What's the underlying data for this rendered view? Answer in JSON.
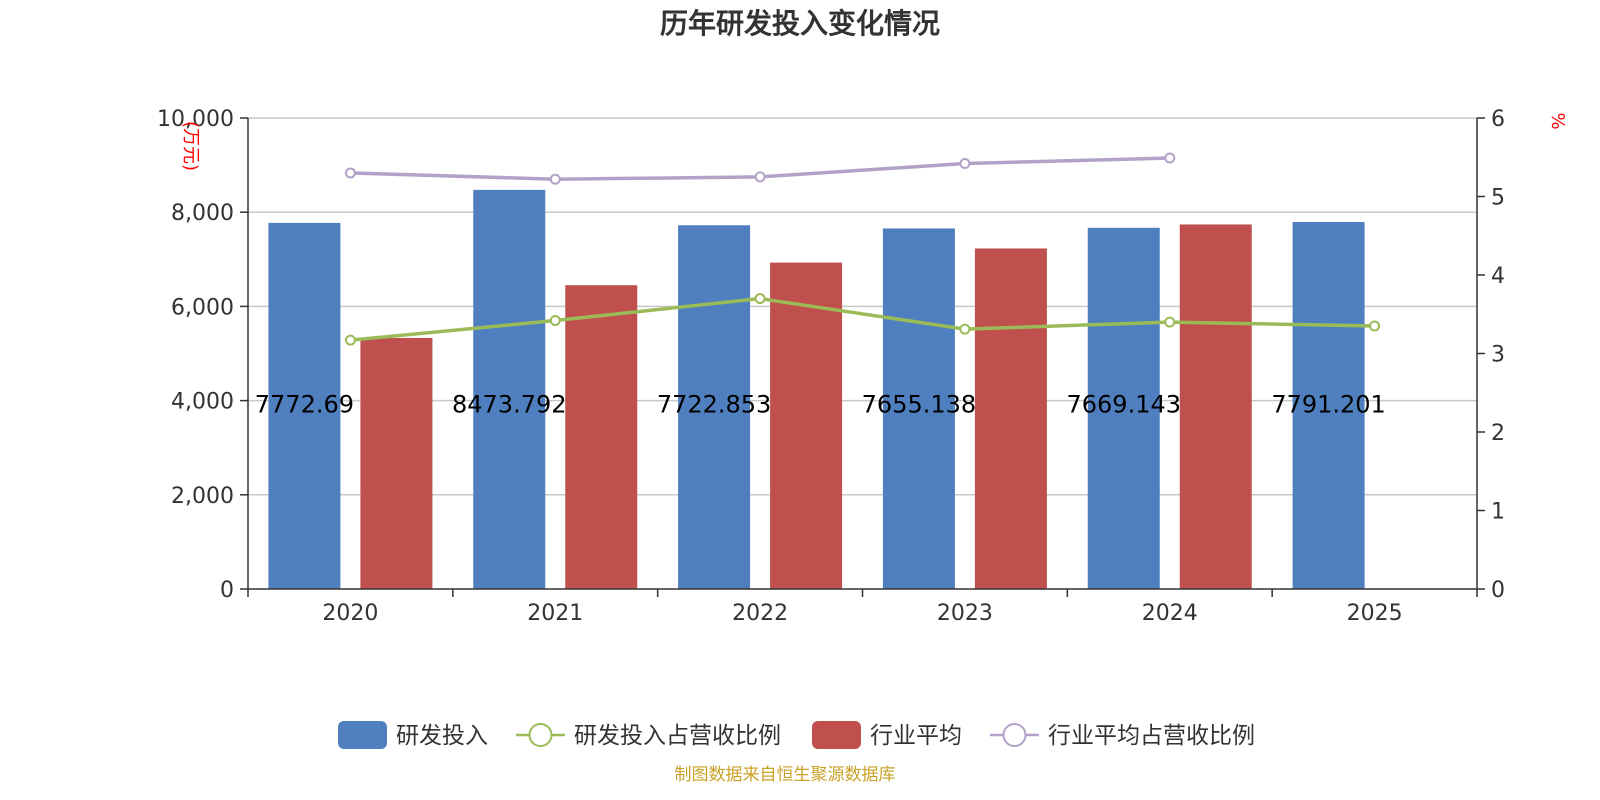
{
  "chart_data": {
    "type": "bar",
    "title": "历年研发投入变化情况",
    "categories": [
      "2020",
      "2021",
      "2022",
      "2023",
      "2024",
      "2025"
    ],
    "left_axis": {
      "unit_label": "(万元)",
      "ylim": [
        0,
        10000
      ],
      "ticks": [
        "0",
        "2,000",
        "4,000",
        "6,000",
        "8,000",
        "10,000"
      ]
    },
    "right_axis": {
      "unit_label": "%",
      "ylim": [
        0,
        6
      ],
      "ticks": [
        "0",
        "1",
        "2",
        "3",
        "4",
        "5",
        "6"
      ]
    },
    "series": [
      {
        "name": "研发投入",
        "kind": "bar",
        "axis": "left",
        "color": "#4f7fbf",
        "values": [
          7772.69,
          8473.792,
          7722.853,
          7655.138,
          7669.143,
          7791.201
        ],
        "labels": [
          "7772.69",
          "8473.792",
          "7722.853",
          "7655.138",
          "7669.143",
          "7791.201"
        ]
      },
      {
        "name": "研发投入占营收比例",
        "kind": "line",
        "axis": "right",
        "color": "#9bbb59",
        "values": [
          3.17,
          3.42,
          3.7,
          3.31,
          3.4,
          3.35
        ]
      },
      {
        "name": "行业平均",
        "kind": "bar",
        "axis": "left",
        "color": "#c0504d",
        "values": [
          5330,
          6450,
          6930,
          7230,
          7740,
          null
        ]
      },
      {
        "name": "行业平均占营收比例",
        "kind": "line",
        "axis": "right",
        "color": "#b3a2c7",
        "values": [
          5.3,
          5.22,
          5.25,
          5.42,
          5.49,
          null
        ]
      }
    ],
    "grid": true,
    "legend_position": "bottom"
  },
  "source_text": "制图数据来自恒生聚源数据库"
}
